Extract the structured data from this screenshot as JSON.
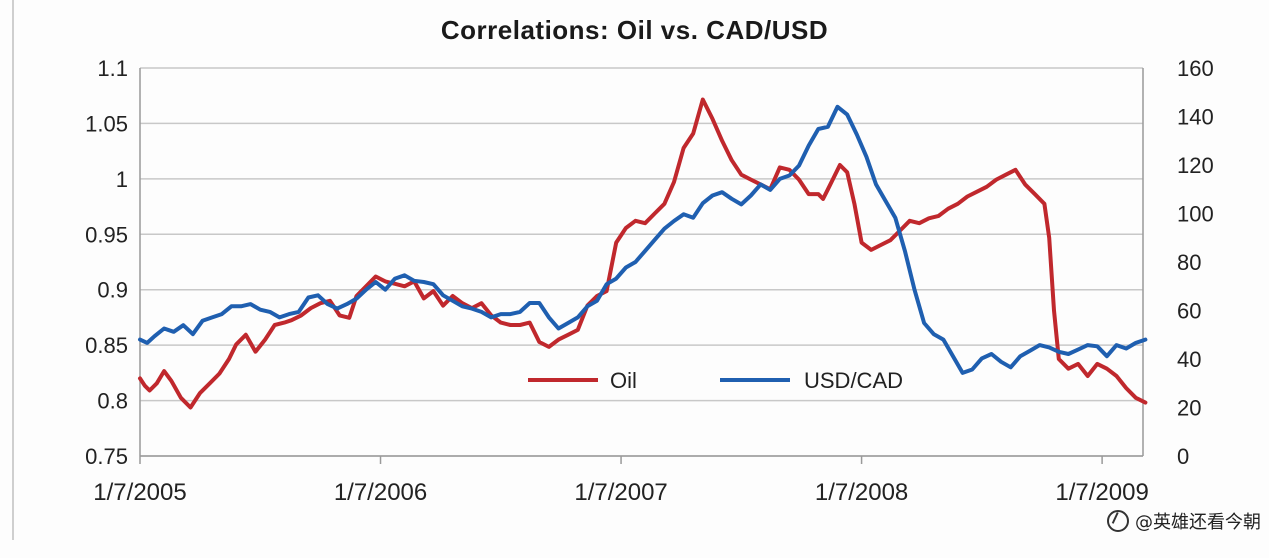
{
  "chart_data": {
    "type": "line",
    "title": "Correlations: Oil vs. CAD/USD",
    "xlabel": "",
    "ylabel": "",
    "y_left": {
      "lim": [
        0.75,
        1.1
      ],
      "ticks": [
        "0.75",
        "0.8",
        "0.85",
        "0.9",
        "0.95",
        "1",
        "1.05",
        "1.1"
      ]
    },
    "y_right": {
      "lim": [
        0,
        160
      ],
      "ticks": [
        "0",
        "20",
        "40",
        "60",
        "80",
        "100",
        "120",
        "140",
        "160"
      ]
    },
    "x_ticks": [
      "1/7/2005",
      "1/7/2006",
      "1/7/2007",
      "1/7/2008",
      "1/7/2009"
    ],
    "grid": "horizontal",
    "legend_position": "bottom-center",
    "series": [
      {
        "name": "Oil",
        "axis": "right",
        "color": "#c0282d",
        "x": [
          2005.0,
          2005.02,
          2005.04,
          2005.07,
          2005.1,
          2005.13,
          2005.17,
          2005.21,
          2005.25,
          2005.29,
          2005.33,
          2005.37,
          2005.4,
          2005.44,
          2005.48,
          2005.52,
          2005.56,
          2005.6,
          2005.63,
          2005.67,
          2005.71,
          2005.75,
          2005.79,
          2005.83,
          2005.87,
          2005.9,
          2005.94,
          2005.98,
          2006.02,
          2006.06,
          2006.1,
          2006.14,
          2006.18,
          2006.22,
          2006.26,
          2006.3,
          2006.34,
          2006.38,
          2006.42,
          2006.46,
          2006.5,
          2006.54,
          2006.58,
          2006.62,
          2006.66,
          2006.7,
          2006.74,
          2006.78,
          2006.82,
          2006.86,
          2006.9,
          2006.94,
          2006.98,
          2007.02,
          2007.06,
          2007.1,
          2007.14,
          2007.18,
          2007.22,
          2007.26,
          2007.3,
          2007.34,
          2007.38,
          2007.42,
          2007.46,
          2007.5,
          2007.54,
          2007.58,
          2007.62,
          2007.66,
          2007.7,
          2007.74,
          2007.78,
          2007.82,
          2007.84,
          2007.86,
          2007.88,
          2007.91,
          2007.94,
          2007.97,
          2008.0,
          2008.04,
          2008.08,
          2008.12,
          2008.16,
          2008.2,
          2008.24,
          2008.28,
          2008.32,
          2008.36,
          2008.4,
          2008.44,
          2008.48,
          2008.52,
          2008.56,
          2008.6,
          2008.64,
          2008.68,
          2008.72,
          2008.76,
          2008.78,
          2008.8,
          2008.82,
          2008.86,
          2008.9,
          2008.94,
          2008.98,
          2009.02,
          2009.06,
          2009.1,
          2009.14,
          2009.18
        ],
        "values": [
          32,
          29,
          27,
          30,
          35,
          31,
          24,
          20,
          26,
          30,
          34,
          40,
          46,
          50,
          43,
          48,
          54,
          55,
          56,
          58,
          61,
          63,
          64,
          58,
          57,
          66,
          70,
          74,
          72,
          71,
          70,
          72,
          65,
          68,
          62,
          66,
          63,
          61,
          63,
          58,
          55,
          54,
          54,
          55,
          47,
          45,
          48,
          50,
          52,
          62,
          66,
          68,
          88,
          94,
          97,
          96,
          100,
          104,
          113,
          127,
          133,
          147,
          139,
          130,
          122,
          116,
          114,
          112,
          110,
          119,
          118,
          114,
          108,
          108,
          106,
          110,
          114,
          120,
          117,
          104,
          88,
          85,
          87,
          89,
          93,
          97,
          96,
          98,
          99,
          102,
          104,
          107,
          109,
          111,
          114,
          116,
          118,
          112,
          108,
          104,
          90,
          60,
          40,
          36,
          38,
          33,
          38,
          36,
          33,
          28,
          24,
          22
        ]
      },
      {
        "name": "USD/CAD",
        "axis": "left",
        "color": "#1f5fb0",
        "x": [
          2005.0,
          2005.03,
          2005.06,
          2005.1,
          2005.14,
          2005.18,
          2005.22,
          2005.26,
          2005.3,
          2005.34,
          2005.38,
          2005.42,
          2005.46,
          2005.5,
          2005.54,
          2005.58,
          2005.62,
          2005.66,
          2005.7,
          2005.74,
          2005.78,
          2005.82,
          2005.86,
          2005.9,
          2005.94,
          2005.98,
          2006.02,
          2006.06,
          2006.1,
          2006.14,
          2006.18,
          2006.22,
          2006.26,
          2006.3,
          2006.34,
          2006.38,
          2006.42,
          2006.46,
          2006.5,
          2006.54,
          2006.58,
          2006.62,
          2006.66,
          2006.7,
          2006.74,
          2006.78,
          2006.82,
          2006.86,
          2006.9,
          2006.94,
          2006.98,
          2007.02,
          2007.06,
          2007.1,
          2007.14,
          2007.18,
          2007.22,
          2007.26,
          2007.3,
          2007.34,
          2007.38,
          2007.42,
          2007.46,
          2007.5,
          2007.54,
          2007.58,
          2007.62,
          2007.66,
          2007.7,
          2007.74,
          2007.78,
          2007.82,
          2007.86,
          2007.9,
          2007.94,
          2007.98,
          2008.02,
          2008.06,
          2008.1,
          2008.14,
          2008.18,
          2008.22,
          2008.26,
          2008.3,
          2008.34,
          2008.38,
          2008.42,
          2008.46,
          2008.5,
          2008.54,
          2008.58,
          2008.62,
          2008.66,
          2008.7,
          2008.74,
          2008.78,
          2008.82,
          2008.86,
          2008.9,
          2008.94,
          2008.98,
          2009.02,
          2009.06,
          2009.1,
          2009.14,
          2009.18
        ],
        "values": [
          0.855,
          0.852,
          0.858,
          0.865,
          0.862,
          0.868,
          0.86,
          0.872,
          0.875,
          0.878,
          0.885,
          0.885,
          0.887,
          0.882,
          0.88,
          0.875,
          0.878,
          0.88,
          0.893,
          0.895,
          0.887,
          0.883,
          0.887,
          0.892,
          0.9,
          0.907,
          0.9,
          0.91,
          0.913,
          0.908,
          0.907,
          0.905,
          0.895,
          0.89,
          0.885,
          0.883,
          0.88,
          0.875,
          0.878,
          0.878,
          0.88,
          0.888,
          0.888,
          0.875,
          0.865,
          0.87,
          0.875,
          0.885,
          0.89,
          0.905,
          0.91,
          0.92,
          0.925,
          0.935,
          0.945,
          0.955,
          0.962,
          0.968,
          0.965,
          0.978,
          0.985,
          0.988,
          0.982,
          0.977,
          0.985,
          0.995,
          0.99,
          1.0,
          1.003,
          1.012,
          1.03,
          1.045,
          1.047,
          1.065,
          1.058,
          1.04,
          1.02,
          0.995,
          0.98,
          0.965,
          0.935,
          0.9,
          0.87,
          0.86,
          0.855,
          0.84,
          0.825,
          0.828,
          0.838,
          0.842,
          0.835,
          0.83,
          0.84,
          0.845,
          0.85,
          0.848,
          0.844,
          0.842,
          0.846,
          0.85,
          0.849,
          0.84,
          0.85,
          0.847,
          0.852,
          0.855
        ]
      }
    ]
  },
  "watermark": "@英雄还看今朝"
}
